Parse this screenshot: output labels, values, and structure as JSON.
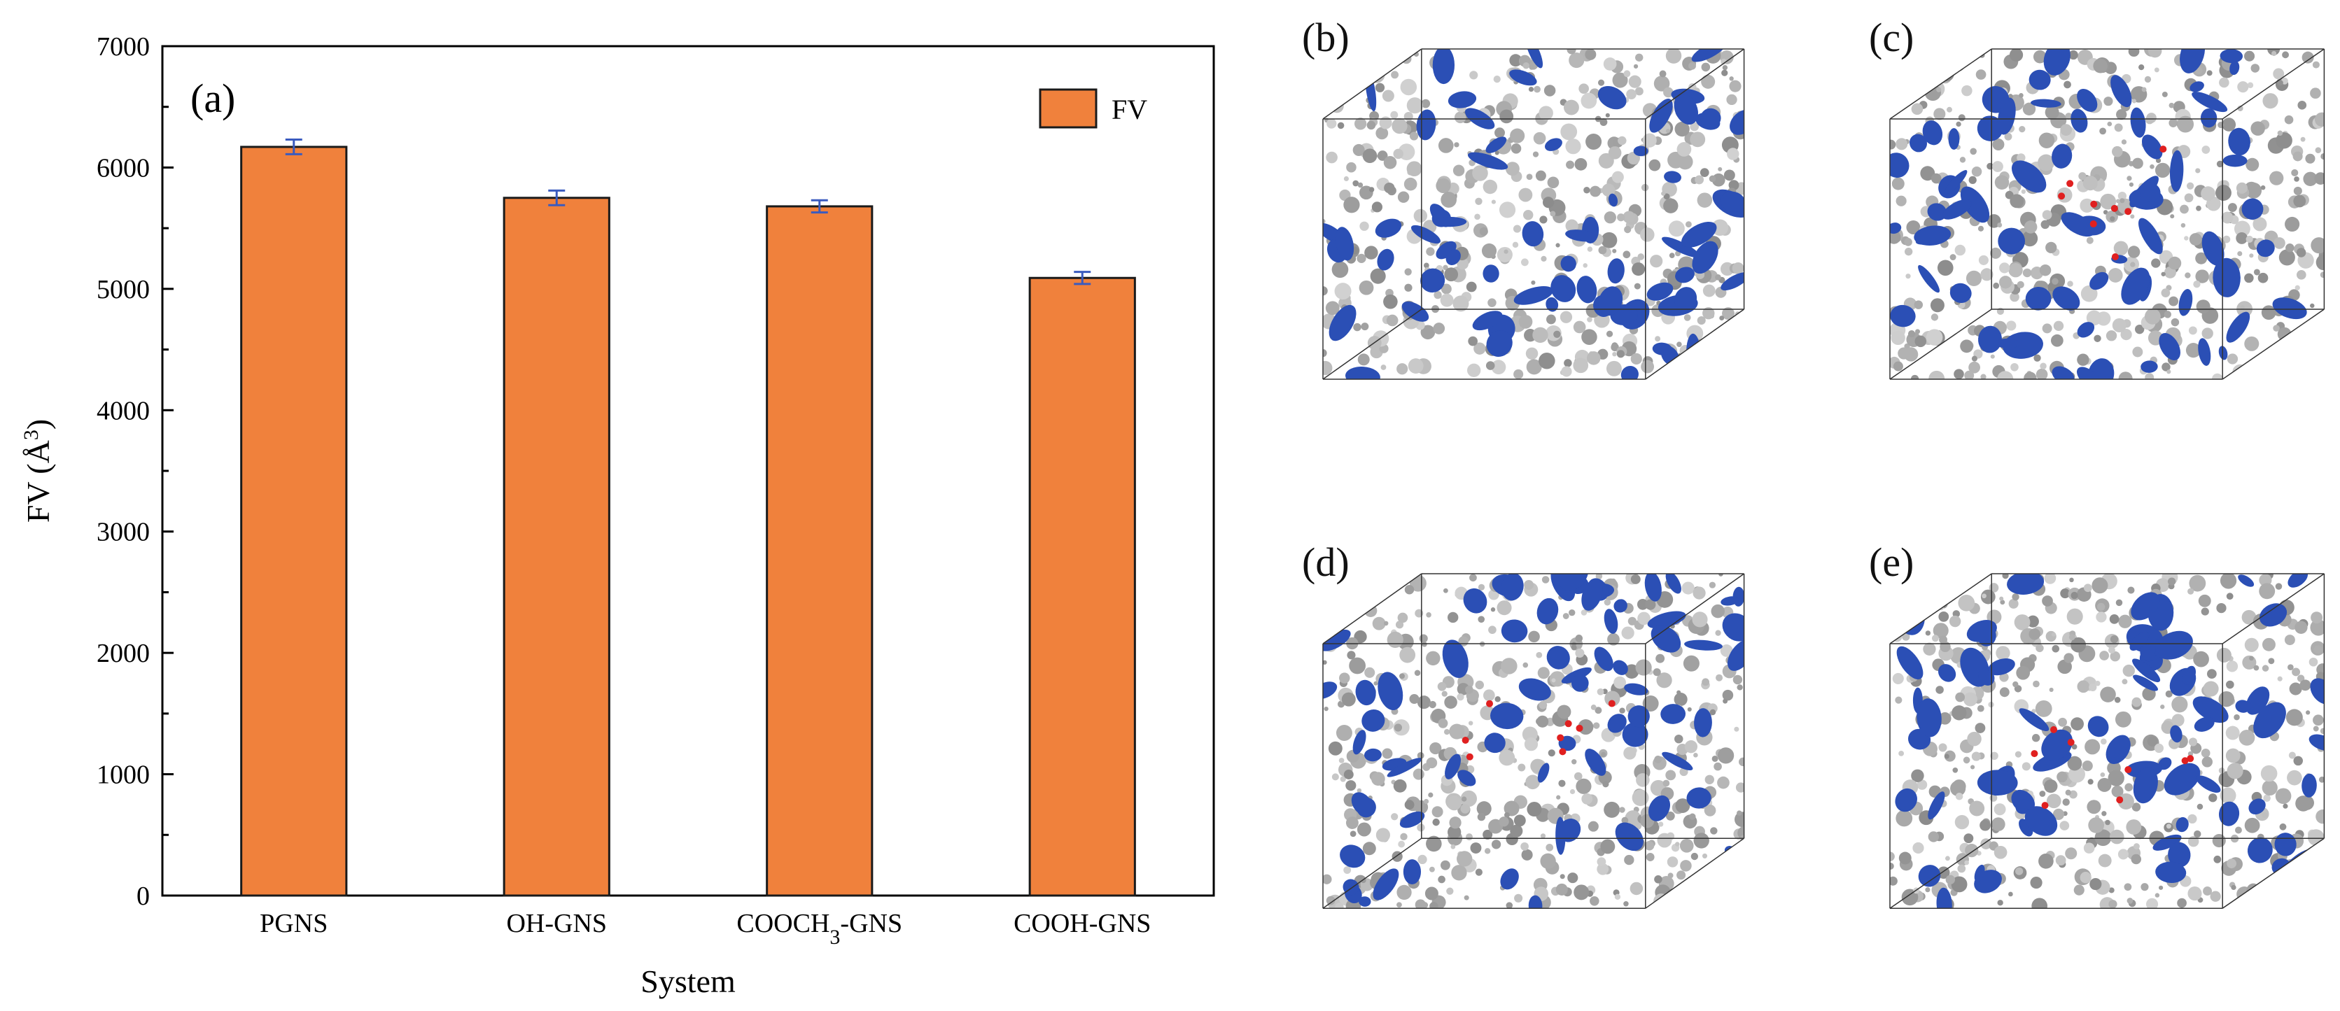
{
  "chart_data": {
    "type": "bar",
    "panel_label": "(a)",
    "categories": [
      "PGNS",
      "OH-GNS",
      "COOCH3-GNS",
      "COOH-GNS"
    ],
    "series": [
      {
        "name": "FV",
        "values": [
          6170,
          5750,
          5680,
          5090
        ],
        "errors": [
          60,
          60,
          50,
          50
        ]
      }
    ],
    "xlabel": "System",
    "ylabel": "FV (Å3)",
    "ylim": [
      0,
      7000
    ],
    "yticks": [
      0,
      1000,
      2000,
      3000,
      4000,
      5000,
      6000,
      7000
    ],
    "legend_position": "top-right",
    "grid": false,
    "colors": {
      "bar": "#f0813c",
      "bar_edge": "#1a1a1a",
      "error_bar": "#3a5bbf"
    }
  },
  "panels": [
    {
      "label": "(b)"
    },
    {
      "label": "(c)"
    },
    {
      "label": "(d)"
    },
    {
      "label": "(e)"
    }
  ],
  "render_colors": {
    "void_blue": "#2b4fb5",
    "matrix_gray": "#a9a9a9",
    "atom_red": "#e02020"
  }
}
